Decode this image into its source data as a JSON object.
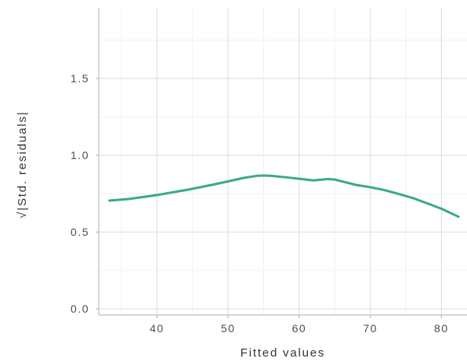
{
  "chart_data": {
    "type": "line",
    "title": "",
    "xlabel": "Fitted values",
    "ylabel": "√|Std. residuals|",
    "xlim": [
      31.8,
      83.6
    ],
    "ylim": [
      -0.04,
      1.96
    ],
    "x_ticks": [
      40,
      50,
      60,
      70,
      80
    ],
    "x_tick_labels": [
      "40",
      "50",
      "60",
      "70",
      "80"
    ],
    "y_ticks": [
      0.0,
      0.5,
      1.0,
      1.5
    ],
    "y_tick_labels": [
      "0.0",
      "0.5",
      "1.0",
      "1.5"
    ],
    "grid": true,
    "legend": "none",
    "series": [
      {
        "color": "#3aaa85",
        "x": [
          33.3,
          36,
          38,
          40,
          42,
          44,
          46,
          48,
          50,
          52,
          54,
          55,
          56,
          58,
          60,
          62,
          64,
          65,
          66,
          68,
          70,
          72,
          74,
          76,
          78,
          80,
          82.4
        ],
        "y": [
          0.705,
          0.715,
          0.728,
          0.741,
          0.757,
          0.773,
          0.791,
          0.81,
          0.83,
          0.851,
          0.866,
          0.868,
          0.866,
          0.857,
          0.847,
          0.836,
          0.845,
          0.842,
          0.83,
          0.807,
          0.792,
          0.773,
          0.748,
          0.721,
          0.687,
          0.652,
          0.6
        ]
      }
    ]
  }
}
